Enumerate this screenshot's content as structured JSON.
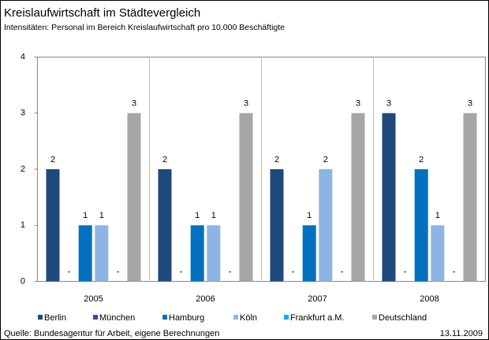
{
  "chart_data": {
    "type": "bar",
    "title": "Kreislaufwirtschaft im Städtevergleich",
    "subtitle": "Intensitäten: Personal im Bereich Kreislaufwirtschaft pro 10.000 Beschäftigte",
    "categories": [
      "2005",
      "2006",
      "2007",
      "2008"
    ],
    "series": [
      {
        "name": "Berlin",
        "color": "#1f497d",
        "values": [
          2,
          2,
          2,
          3
        ]
      },
      {
        "name": "München",
        "color": "#7030a0",
        "values": [
          0,
          0,
          0,
          0
        ],
        "value_labels": [
          "-",
          "-",
          "-",
          "-"
        ]
      },
      {
        "name": "Hamburg",
        "color": "#0070c0",
        "values": [
          1,
          1,
          1,
          2
        ]
      },
      {
        "name": "Köln",
        "color": "#8eb4e3",
        "values": [
          1,
          1,
          2,
          1
        ]
      },
      {
        "name": "Frankfurt a.M.",
        "color": "#00b0f0",
        "values": [
          0,
          0,
          0,
          0
        ],
        "value_labels": [
          "-",
          "-",
          "-",
          "-"
        ]
      },
      {
        "name": "Deutschland",
        "color": "#a6a6a6",
        "values": [
          3,
          3,
          3,
          3
        ]
      }
    ],
    "ylim": [
      0,
      4
    ],
    "yticks": [
      0,
      1,
      2,
      3,
      4
    ],
    "legend": "bottom",
    "source": "Quelle: Bundesagentur für Arbeit, eigene Berechnungen",
    "date": "13.11.2009"
  }
}
